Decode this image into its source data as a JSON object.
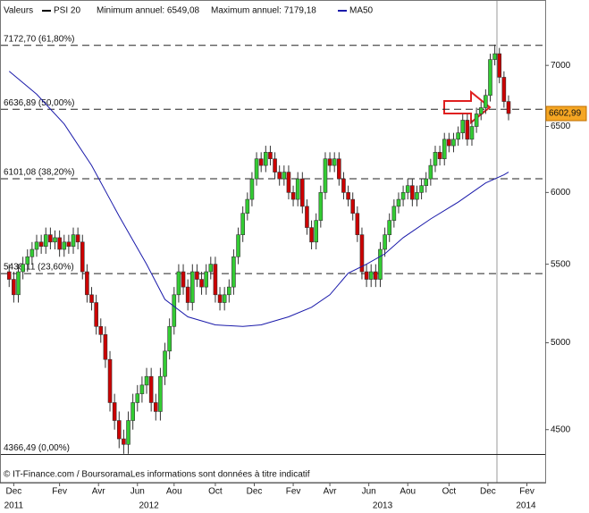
{
  "chart_data": {
    "type": "candlestick",
    "legend_label": "Valeurs",
    "name": "PSI 20",
    "min_label": "Minimum annuel: 6549,08",
    "max_label": "Maximum annuel: 7179,18",
    "footer": "© IT-Finance.com / BoursoramaLes informations sont données à titre indicatif",
    "log_scale": true,
    "up_color": "#33cc33",
    "down_color": "#cc0000",
    "x": [
      0,
      1,
      2,
      3,
      4,
      5,
      6,
      7,
      8,
      9,
      10,
      11,
      12,
      13,
      14,
      15,
      16,
      17,
      18,
      19,
      20,
      21,
      22,
      23,
      24,
      25,
      26,
      27,
      28,
      29,
      30,
      31,
      32,
      33,
      34,
      35,
      36,
      37,
      38,
      39,
      40,
      41,
      42,
      43,
      44,
      45,
      46,
      47,
      48,
      49,
      50,
      51,
      52,
      53,
      54,
      55,
      56,
      57,
      58,
      59,
      60,
      61,
      62,
      63,
      64,
      65,
      66,
      67,
      68,
      69,
      70,
      71,
      72,
      73,
      74,
      75,
      76,
      77,
      78,
      79,
      80,
      81,
      82,
      83,
      84,
      85,
      86,
      87,
      88,
      89,
      90,
      91,
      92,
      93,
      94,
      95,
      96,
      97,
      98,
      99,
      100,
      101,
      102,
      103,
      104,
      105,
      106,
      107,
      108,
      109
    ],
    "open": [
      5450,
      5400,
      5300,
      5450,
      5500,
      5550,
      5600,
      5650,
      5620,
      5700,
      5650,
      5680,
      5600,
      5650,
      5620,
      5700,
      5650,
      5450,
      5300,
      5250,
      5100,
      5050,
      4900,
      4650,
      4550,
      4450,
      4420,
      4550,
      4650,
      4700,
      4750,
      4800,
      4650,
      4600,
      4800,
      4950,
      5100,
      5300,
      5450,
      5350,
      5250,
      5450,
      5400,
      5350,
      5450,
      5500,
      5300,
      5250,
      5300,
      5350,
      5550,
      5700,
      5850,
      5950,
      6100,
      6250,
      6200,
      6300,
      6250,
      6150,
      6100,
      6150,
      6000,
      5950,
      6100,
      5900,
      5750,
      5650,
      5800,
      6000,
      6250,
      6200,
      6250,
      6100,
      6000,
      5950,
      5850,
      5700,
      5450,
      5400,
      5450,
      5400,
      5600,
      5700,
      5800,
      5900,
      5950,
      6000,
      6050,
      5950,
      6000,
      6050,
      6100,
      6200,
      6300,
      6250,
      6400,
      6350,
      6400,
      6450,
      6550,
      6400,
      6500,
      6600,
      6650,
      6750,
      7050,
      7100,
      6900,
      6700
    ],
    "high": [
      5500,
      5450,
      5500,
      5550,
      5600,
      5650,
      5700,
      5700,
      5750,
      5750,
      5730,
      5730,
      5700,
      5700,
      5750,
      5750,
      5700,
      5500,
      5350,
      5300,
      5150,
      5100,
      4950,
      4700,
      4600,
      4500,
      4600,
      4700,
      4750,
      4800,
      4850,
      4850,
      4700,
      4850,
      5000,
      5150,
      5350,
      5500,
      5500,
      5400,
      5500,
      5500,
      5450,
      5500,
      5550,
      5550,
      5350,
      5350,
      5400,
      5600,
      5750,
      5900,
      6000,
      6150,
      6300,
      6300,
      6350,
      6350,
      6300,
      6200,
      6200,
      6200,
      6050,
      6150,
      6150,
      5950,
      5800,
      5850,
      6050,
      6300,
      6300,
      6300,
      6300,
      6150,
      6050,
      6000,
      5900,
      5750,
      5500,
      5500,
      5500,
      5650,
      5750,
      5850,
      5950,
      6000,
      6050,
      6100,
      6100,
      6050,
      6100,
      6150,
      6250,
      6350,
      6350,
      6450,
      6450,
      6450,
      6500,
      6600,
      6600,
      6550,
      6650,
      6700,
      6800,
      7100,
      7179.18,
      7150,
      6950,
      6750
    ],
    "low": [
      5350,
      5250,
      5250,
      5400,
      5450,
      5500,
      5550,
      5570,
      5570,
      5600,
      5600,
      5550,
      5550,
      5570,
      5570,
      5600,
      5400,
      5250,
      5200,
      5050,
      5000,
      4850,
      4600,
      4500,
      4400,
      4370,
      4370,
      4500,
      4600,
      4650,
      4700,
      4600,
      4550,
      4550,
      4750,
      4900,
      5050,
      5250,
      5300,
      5200,
      5200,
      5350,
      5300,
      5300,
      5400,
      5250,
      5200,
      5200,
      5250,
      5300,
      5500,
      5650,
      5800,
      5900,
      6050,
      6150,
      6150,
      6200,
      6100,
      6050,
      6050,
      5950,
      5900,
      5900,
      5850,
      5700,
      5600,
      5600,
      5750,
      5950,
      6150,
      6150,
      6050,
      5950,
      5900,
      5800,
      5650,
      5400,
      5350,
      5350,
      5350,
      5350,
      5550,
      5650,
      5750,
      5850,
      5900,
      5950,
      5900,
      5900,
      5950,
      6000,
      6050,
      6150,
      6200,
      6200,
      6300,
      6300,
      6350,
      6400,
      6350,
      6350,
      6450,
      6550,
      6600,
      6700,
      7000,
      6850,
      6650,
      6549.08
    ],
    "close": [
      5400,
      5300,
      5450,
      5500,
      5550,
      5600,
      5650,
      5620,
      5700,
      5650,
      5680,
      5600,
      5650,
      5620,
      5700,
      5650,
      5450,
      5300,
      5250,
      5100,
      5050,
      4900,
      4650,
      4550,
      4450,
      4420,
      4550,
      4650,
      4700,
      4750,
      4800,
      4650,
      4600,
      4800,
      4950,
      5100,
      5300,
      5450,
      5350,
      5250,
      5450,
      5400,
      5350,
      5450,
      5500,
      5300,
      5250,
      5300,
      5350,
      5550,
      5700,
      5850,
      5950,
      6100,
      6250,
      6200,
      6300,
      6250,
      6150,
      6100,
      6150,
      6000,
      5950,
      6100,
      5900,
      5750,
      5650,
      5800,
      6000,
      6250,
      6200,
      6250,
      6100,
      6000,
      5950,
      5850,
      5700,
      5450,
      5400,
      5450,
      5400,
      5600,
      5700,
      5800,
      5900,
      5950,
      6000,
      6050,
      5950,
      6000,
      6050,
      6100,
      6200,
      6300,
      6250,
      6400,
      6350,
      6400,
      6450,
      6550,
      6400,
      6500,
      6600,
      6650,
      6750,
      7050,
      7100,
      6900,
      6700,
      6602.99
    ],
    "last_price": {
      "value": 6602.99,
      "label": "6602,99"
    },
    "ma": {
      "name": "MA50",
      "color": "#1a1aaa",
      "x": [
        0,
        6,
        12,
        18,
        24,
        30,
        34,
        39,
        45,
        51,
        55,
        61,
        66,
        70,
        74,
        78,
        82,
        86,
        92,
        98,
        104,
        108,
        109
      ],
      "values": [
        6950,
        6760,
        6520,
        6200,
        5830,
        5500,
        5270,
        5160,
        5110,
        5100,
        5110,
        5160,
        5220,
        5300,
        5440,
        5500,
        5570,
        5680,
        5810,
        5930,
        6070,
        6130,
        6150
      ]
    },
    "fib_levels": [
      {
        "value": 7172.7,
        "label": "7172,70 (61,80%)"
      },
      {
        "value": 6636.89,
        "label": "6636,89 (50,00%)"
      },
      {
        "value": 6101.08,
        "label": "6101,08 (38,20%)"
      },
      {
        "value": 5438.11,
        "label": "5438,11 (23,60%)"
      },
      {
        "value": 4366.49,
        "label": "4366,49 (0,00%)"
      }
    ],
    "xlim": [
      -2,
      117
    ],
    "ylim": [
      4350,
      7480
    ],
    "yticks": [
      4500,
      5000,
      5500,
      6000,
      6500,
      7000
    ],
    "xticks": [
      {
        "value": 1,
        "label": "Dec"
      },
      {
        "value": 11,
        "label": "Fev"
      },
      {
        "value": 19.5,
        "label": "Avr"
      },
      {
        "value": 28,
        "label": "Jun"
      },
      {
        "value": 36,
        "label": "Aou"
      },
      {
        "value": 45,
        "label": "Oct"
      },
      {
        "value": 53.5,
        "label": "Dec"
      },
      {
        "value": 62,
        "label": "Fev"
      },
      {
        "value": 70,
        "label": "Avr"
      },
      {
        "value": 78.5,
        "label": "Jun"
      },
      {
        "value": 87,
        "label": "Aou"
      },
      {
        "value": 96,
        "label": "Oct"
      },
      {
        "value": 104.5,
        "label": "Dec"
      },
      {
        "value": 113,
        "label": "Fev"
      }
    ],
    "year_labels": [
      {
        "value": 1,
        "label": "2011"
      },
      {
        "value": 30.5,
        "label": "2012"
      },
      {
        "value": 81.5,
        "label": "2013"
      },
      {
        "value": 112.8,
        "label": "2014"
      }
    ]
  }
}
